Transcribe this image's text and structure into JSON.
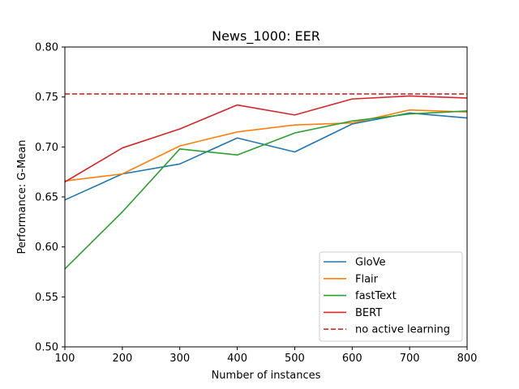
{
  "chart_data": {
    "type": "line",
    "title": "News_1000: EER",
    "xlabel": "Number of instances",
    "ylabel": "Performance: G-Mean",
    "x": [
      100,
      200,
      300,
      400,
      500,
      600,
      700,
      800
    ],
    "xlim": [
      100,
      800
    ],
    "ylim": [
      0.5,
      0.8
    ],
    "xticks": [
      "100",
      "200",
      "300",
      "400",
      "500",
      "600",
      "700",
      "800"
    ],
    "yticks": [
      "0.50",
      "0.55",
      "0.60",
      "0.65",
      "0.70",
      "0.75",
      "0.80"
    ],
    "grid": false,
    "legend_position": "bottom-right",
    "series": [
      {
        "name": "GloVe",
        "color": "#1f77b4",
        "style": "solid",
        "values": [
          0.647,
          0.673,
          0.683,
          0.709,
          0.695,
          0.723,
          0.734,
          0.729
        ]
      },
      {
        "name": "Flair",
        "color": "#ff7f0e",
        "style": "solid",
        "values": [
          0.666,
          0.673,
          0.701,
          0.715,
          0.722,
          0.724,
          0.737,
          0.735
        ]
      },
      {
        "name": "fastText",
        "color": "#2ca02c",
        "style": "solid",
        "values": [
          0.578,
          0.635,
          0.698,
          0.692,
          0.714,
          0.726,
          0.733,
          0.736
        ]
      },
      {
        "name": "BERT",
        "color": "#d62728",
        "style": "solid",
        "values": [
          0.665,
          0.699,
          0.718,
          0.742,
          0.732,
          0.748,
          0.751,
          0.749
        ]
      },
      {
        "name": "no active learning",
        "color": "#d62728",
        "style": "dashed",
        "values": [
          0.753,
          0.753,
          0.753,
          0.753,
          0.753,
          0.753,
          0.753,
          0.753
        ]
      }
    ]
  }
}
